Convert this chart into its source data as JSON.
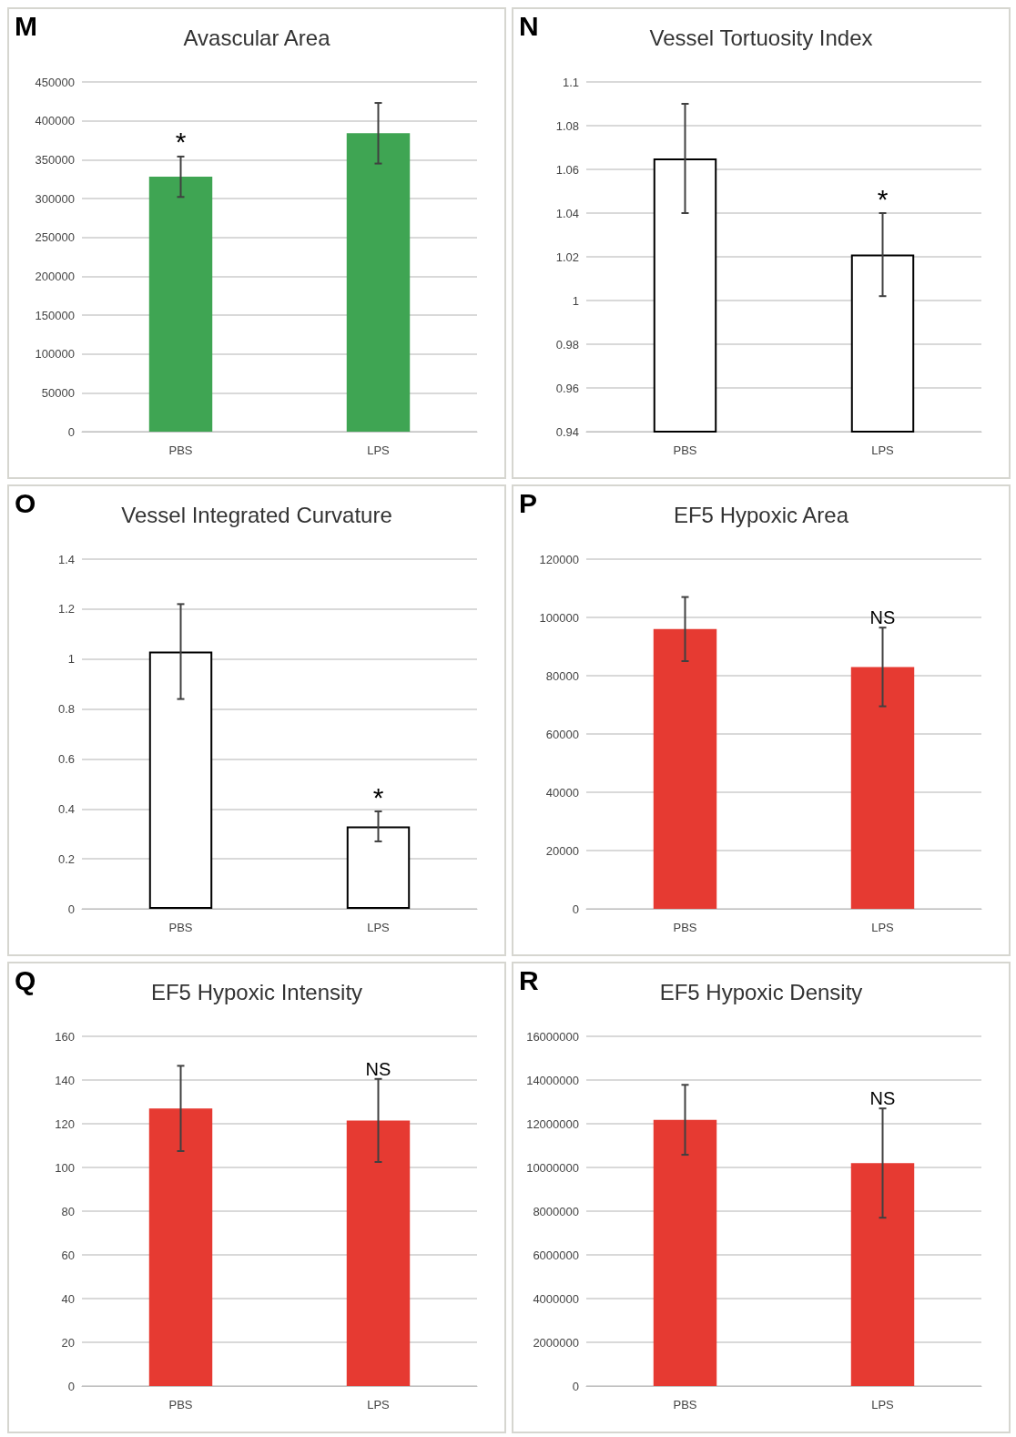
{
  "chart_data": [
    {
      "type": "bar",
      "title": "Avascular Area",
      "categories": [
        "PBS",
        "LPS"
      ],
      "values": [
        328000,
        384000
      ],
      "errors": [
        26000,
        39000
      ],
      "value_labels": [
        "*",
        null
      ],
      "color": "#3fa553",
      "ylim": [
        0,
        450000
      ],
      "yticks": [
        0,
        50000,
        100000,
        150000,
        200000,
        250000,
        300000,
        350000,
        400000,
        450000
      ],
      "grid": "y",
      "annotations": [
        "M"
      ]
    },
    {
      "type": "bar",
      "title": "Vessel Tortuosity Index",
      "categories": [
        "PBS",
        "LPS"
      ],
      "values": [
        1.065,
        1.021
      ],
      "errors": [
        0.025,
        0.019
      ],
      "value_labels": [
        null,
        "*"
      ],
      "color": "#ffffff",
      "ylim": [
        0.94,
        1.1
      ],
      "yticks": [
        0.94,
        0.96,
        0.98,
        1,
        1.02,
        1.04,
        1.06,
        1.08,
        1.1
      ],
      "grid": "y",
      "annotations": [
        "N"
      ]
    },
    {
      "type": "bar",
      "title": "Vessel Integrated Curvature",
      "categories": [
        "PBS",
        "LPS"
      ],
      "values": [
        1.03,
        0.33
      ],
      "errors": [
        0.19,
        0.06
      ],
      "value_labels": [
        null,
        "*"
      ],
      "color": "#ffffff",
      "ylim": [
        0,
        1.4
      ],
      "yticks": [
        0,
        0.2,
        0.4,
        0.6,
        0.8,
        1,
        1.2,
        1.4
      ],
      "grid": "y",
      "annotations": [
        "O"
      ]
    },
    {
      "type": "bar",
      "title": "EF5 Hypoxic Area",
      "categories": [
        "PBS",
        "LPS"
      ],
      "values": [
        96000,
        83000
      ],
      "errors": [
        11000,
        13500
      ],
      "value_labels": [
        null,
        "NS"
      ],
      "color": "#e63a32",
      "ylim": [
        0,
        120000
      ],
      "yticks": [
        0,
        20000,
        40000,
        60000,
        80000,
        100000,
        120000
      ],
      "grid": "y",
      "annotations": [
        "P"
      ]
    },
    {
      "type": "bar",
      "title": "EF5 Hypoxic Intensity",
      "categories": [
        "PBS",
        "LPS"
      ],
      "values": [
        127,
        121.5
      ],
      "errors": [
        19.5,
        19
      ],
      "value_labels": [
        null,
        "NS"
      ],
      "color": "#e63a32",
      "ylim": [
        0,
        160
      ],
      "yticks": [
        0,
        20,
        40,
        60,
        80,
        100,
        120,
        140,
        160
      ],
      "grid": "y",
      "annotations": [
        "Q"
      ]
    },
    {
      "type": "bar",
      "title": "EF5 Hypoxic Density",
      "categories": [
        "PBS",
        "LPS"
      ],
      "values": [
        12180000,
        10200000
      ],
      "errors": [
        1600000,
        2500000
      ],
      "value_labels": [
        null,
        "NS"
      ],
      "color": "#e63a32",
      "ylim": [
        0,
        16000000
      ],
      "yticks": [
        0,
        2000000,
        4000000,
        6000000,
        8000000,
        10000000,
        12000000,
        14000000,
        16000000
      ],
      "grid": "y",
      "annotations": [
        "R"
      ]
    }
  ]
}
